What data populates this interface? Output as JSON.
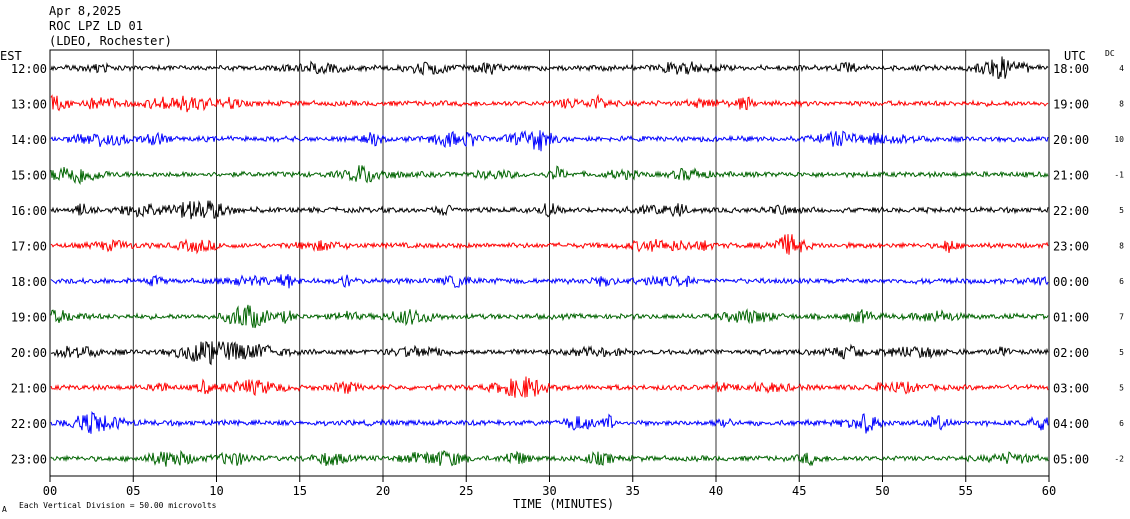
{
  "header": {
    "date": "Apr 8,2025",
    "station": "ROC LPZ LD 01",
    "network": "(LDEO, Rochester)"
  },
  "left_axis_title": "EST",
  "right_axis_title": "UTC",
  "dc_title": "DC",
  "footer": {
    "small_mark": "A",
    "scale_note": "Each Vertical Division =   50.00 microvolts"
  },
  "colors": {
    "black": "#000000",
    "red": "#ff0000",
    "blue": "#0000ff",
    "green": "#006400",
    "grid": "#000000"
  },
  "chart_data": {
    "type": "line",
    "title": "",
    "xlabel": "TIME (MINUTES)",
    "xlim": [
      0,
      60
    ],
    "x_ticks": [
      "00",
      "05",
      "10",
      "15",
      "20",
      "25",
      "30",
      "35",
      "40",
      "45",
      "50",
      "55",
      "60"
    ],
    "grid": "vertical every 5 minutes",
    "series": [
      {
        "left_label": "12:00",
        "right_label": "18:00",
        "dc": "4",
        "color": "black"
      },
      {
        "left_label": "13:00",
        "right_label": "19:00",
        "dc": "8",
        "color": "red"
      },
      {
        "left_label": "14:00",
        "right_label": "20:00",
        "dc": "10",
        "color": "blue"
      },
      {
        "left_label": "15:00",
        "right_label": "21:00",
        "dc": "-1",
        "color": "green"
      },
      {
        "left_label": "16:00",
        "right_label": "22:00",
        "dc": "5",
        "color": "black"
      },
      {
        "left_label": "17:00",
        "right_label": "23:00",
        "dc": "8",
        "color": "red"
      },
      {
        "left_label": "18:00",
        "right_label": "00:00",
        "dc": "6",
        "color": "blue"
      },
      {
        "left_label": "19:00",
        "right_label": "01:00",
        "dc": "7",
        "color": "green"
      },
      {
        "left_label": "20:00",
        "right_label": "02:00",
        "dc": "5",
        "color": "black"
      },
      {
        "left_label": "21:00",
        "right_label": "03:00",
        "dc": "5",
        "color": "red"
      },
      {
        "left_label": "22:00",
        "right_label": "04:00",
        "dc": "6",
        "color": "blue"
      },
      {
        "left_label": "23:00",
        "right_label": "05:00",
        "dc": "-2",
        "color": "green"
      }
    ]
  }
}
